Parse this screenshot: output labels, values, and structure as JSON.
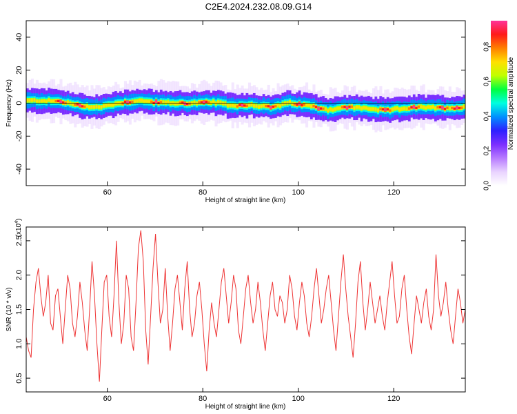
{
  "title": "C2E4.2024.232.08.09.G14",
  "colors": {
    "snr_line": "#ee3333",
    "colormap": [
      "#ffffff",
      "#e9d3ff",
      "#b77bff",
      "#7b2fff",
      "#2e1fff",
      "#0090ff",
      "#00ffe0",
      "#00ff40",
      "#c0ff00",
      "#ffe000",
      "#ff8000",
      "#ff1a1a",
      "#ff3399"
    ]
  },
  "chart_data": [
    {
      "type": "heatmap",
      "xlabel": "Height of straight line (km)",
      "ylabel": "Frequency (Hz)",
      "xlim": [
        43,
        135
      ],
      "ylim": [
        -50,
        50
      ],
      "xticks": [
        60,
        80,
        100,
        120
      ],
      "yticks": [
        -40,
        -20,
        0,
        20,
        40
      ],
      "colorbar": {
        "label": "Normalized spectral amplitude",
        "range": [
          0.0,
          0.95
        ],
        "ticks": [
          0.0,
          0.2,
          0.4,
          0.6,
          0.8
        ]
      },
      "ridge": {
        "x": [
          43,
          46,
          50,
          54,
          58,
          62,
          66,
          70,
          74,
          78,
          82,
          86,
          90,
          94,
          98,
          102,
          106,
          110,
          114,
          118,
          122,
          126,
          130,
          135
        ],
        "y": [
          1.5,
          1.5,
          1.0,
          -1.5,
          -2.5,
          0,
          1.5,
          0.5,
          0,
          0,
          0.5,
          -1.5,
          -1.0,
          -2.5,
          0,
          -1.5,
          -4.0,
          -2.5,
          -3.0,
          -4.5,
          -3.0,
          -2.5,
          -3.0,
          -2.5
        ]
      },
      "hotspots_x": [
        50,
        54,
        64,
        70,
        76,
        80,
        88,
        94,
        100,
        104,
        110,
        118,
        124,
        130,
        133
      ]
    },
    {
      "type": "line",
      "xlabel": "Height of straight line (km)",
      "ylabel": "SNR (10 * v/v)",
      "y_multiplier": "(x10",
      "y_multiplier_exp": "4",
      "y_multiplier_close": ")",
      "xlim": [
        43,
        135
      ],
      "ylim": [
        0.3,
        2.7
      ],
      "xticks": [
        60,
        80,
        100,
        120
      ],
      "yticks": [
        0.5,
        1.0,
        1.5,
        2.0,
        2.5
      ],
      "series": [
        {
          "x_start": 43,
          "x_end": 135,
          "values": [
            1.1,
            0.9,
            0.8,
            1.5,
            1.9,
            2.1,
            1.7,
            1.4,
            1.6,
            2.0,
            1.3,
            1.2,
            1.7,
            1.8,
            1.4,
            1.0,
            1.5,
            2.0,
            1.8,
            1.3,
            1.1,
            1.4,
            1.9,
            1.6,
            1.2,
            0.9,
            1.5,
            2.2,
            1.7,
            1.0,
            0.45,
            1.2,
            1.9,
            2.0,
            1.4,
            1.1,
            1.7,
            2.5,
            1.6,
            1.0,
            1.3,
            2.0,
            1.8,
            1.1,
            0.9,
            1.6,
            2.4,
            2.65,
            2.2,
            1.2,
            0.7,
            1.4,
            2.1,
            2.6,
            1.9,
            1.3,
            1.5,
            2.1,
            1.4,
            0.9,
            1.3,
            1.8,
            2.0,
            1.6,
            1.2,
            1.8,
            2.2,
            1.5,
            1.1,
            1.3,
            1.7,
            1.9,
            1.5,
            1.0,
            0.6,
            1.2,
            1.6,
            1.3,
            1.1,
            1.5,
            1.9,
            2.1,
            1.7,
            1.3,
            1.6,
            2.0,
            1.8,
            1.2,
            1.0,
            1.4,
            1.8,
            2.0,
            1.6,
            1.3,
            1.5,
            1.9,
            1.6,
            1.2,
            0.9,
            1.3,
            1.7,
            1.9,
            1.5,
            1.4,
            1.7,
            1.6,
            1.3,
            1.5,
            2.0,
            1.8,
            1.4,
            1.2,
            1.6,
            1.9,
            1.7,
            1.3,
            1.1,
            1.4,
            1.8,
            2.1,
            1.7,
            1.3,
            1.5,
            1.8,
            2.0,
            1.6,
            1.2,
            0.9,
            1.4,
            1.9,
            2.3,
            1.8,
            1.4,
            1.1,
            0.8,
            1.3,
            1.9,
            2.2,
            1.6,
            1.2,
            1.5,
            1.9,
            1.6,
            1.3,
            1.5,
            1.7,
            1.4,
            1.2,
            1.6,
            1.9,
            2.2,
            1.7,
            1.3,
            1.4,
            1.8,
            2.0,
            1.5,
            1.1,
            0.85,
            1.3,
            1.7,
            1.5,
            1.3,
            1.6,
            1.8,
            1.4,
            1.2,
            1.5,
            2.3,
            1.7,
            1.4,
            1.6,
            1.9,
            1.5,
            1.2,
            1.0,
            1.4,
            1.8,
            1.6,
            1.3,
            1.5
          ]
        }
      ]
    }
  ]
}
